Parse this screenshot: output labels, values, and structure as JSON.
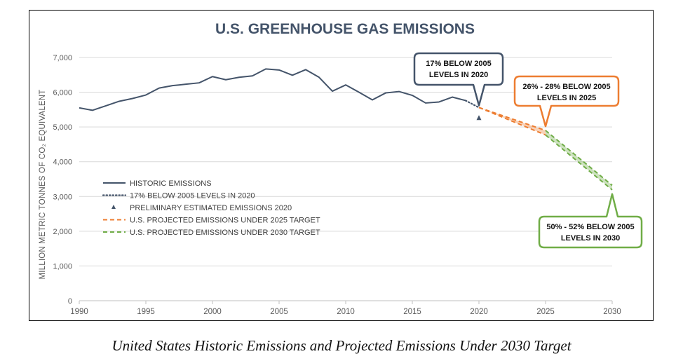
{
  "colors": {
    "historic": "#44546a",
    "target_2025": "#ed7d31",
    "target_2030": "#70ad47",
    "grid": "#d9d9d9",
    "axis_text": "#595959"
  },
  "caption": "United States Historic Emissions and Projected Emissions Under 2030 Target",
  "chart_data": {
    "type": "line",
    "title": "U.S. GREENHOUSE GAS EMISSIONS",
    "ylabel": "MILLION METRIC TONNES OF CO₂ EQUIVALENT",
    "xlabel": "",
    "xlim": [
      1990,
      2030
    ],
    "ylim": [
      0,
      7000
    ],
    "x_ticks": [
      1990,
      1995,
      2000,
      2005,
      2010,
      2015,
      2020,
      2025,
      2030
    ],
    "y_ticks": [
      0,
      1000,
      2000,
      3000,
      4000,
      5000,
      6000,
      7000
    ],
    "y_tick_labels": [
      "0",
      "1,000",
      "2,000",
      "3,000",
      "4,000",
      "5,000",
      "6,000",
      "7,000"
    ],
    "grid": "horizontal",
    "legend_position": "lower-left",
    "series": [
      {
        "name": "HISTORIC EMISSIONS",
        "style": "solid",
        "color": "historic",
        "x": [
          1990,
          1991,
          1992,
          1993,
          1994,
          1995,
          1996,
          1997,
          1998,
          1999,
          2000,
          2001,
          2002,
          2003,
          2004,
          2005,
          2006,
          2007,
          2008,
          2009,
          2010,
          2011,
          2012,
          2013,
          2014,
          2015,
          2016,
          2017,
          2018,
          2019
        ],
        "y": [
          5550,
          5480,
          5610,
          5740,
          5820,
          5920,
          6120,
          6190,
          6230,
          6270,
          6450,
          6360,
          6430,
          6470,
          6670,
          6640,
          6490,
          6650,
          6430,
          6030,
          6210,
          6000,
          5780,
          5980,
          6020,
          5910,
          5690,
          5720,
          5860,
          5760
        ]
      },
      {
        "name": "17% BELOW 2005 LEVELS IN 2020",
        "style": "dotted",
        "color": "historic",
        "x": [
          2019,
          2020
        ],
        "y": [
          5760,
          5560
        ]
      },
      {
        "name": "PRELIMINARY ESTIMATED EMISSIONS 2020",
        "style": "marker-triangle",
        "color": "historic",
        "x": [
          2020
        ],
        "y": [
          5260
        ]
      },
      {
        "name": "U.S. PROJECTED EMISSIONS UNDER 2025 TARGET",
        "style": "dashed-band",
        "color": "target_2025",
        "x": [
          2020,
          2025
        ],
        "upper": [
          5560,
          4900
        ],
        "lower": [
          5560,
          4770
        ]
      },
      {
        "name": "U.S. PROJECTED EMISSIONS UNDER 2030 TARGET",
        "style": "dashed-band",
        "color": "target_2030",
        "x": [
          2025,
          2030
        ],
        "upper": [
          4900,
          3320
        ],
        "lower": [
          4770,
          3190
        ]
      }
    ],
    "annotations": [
      {
        "id": "ann-2020",
        "line1": "17% BELOW 2005",
        "line2": "LEVELS IN 2020",
        "color": "historic",
        "fill": "#ffffff",
        "point": [
          2020,
          5620
        ]
      },
      {
        "id": "ann-2025",
        "line1": "26% - 28% BELOW 2005",
        "line2": "LEVELS IN 2025",
        "color": "target_2025",
        "fill": "#ffffff",
        "point": [
          2025,
          5020
        ]
      },
      {
        "id": "ann-2030",
        "line1": "50% - 52% BELOW 2005",
        "line2": "LEVELS IN 2030",
        "color": "target_2030",
        "fill": "#ffffff",
        "point": [
          2030,
          3070
        ]
      }
    ]
  }
}
